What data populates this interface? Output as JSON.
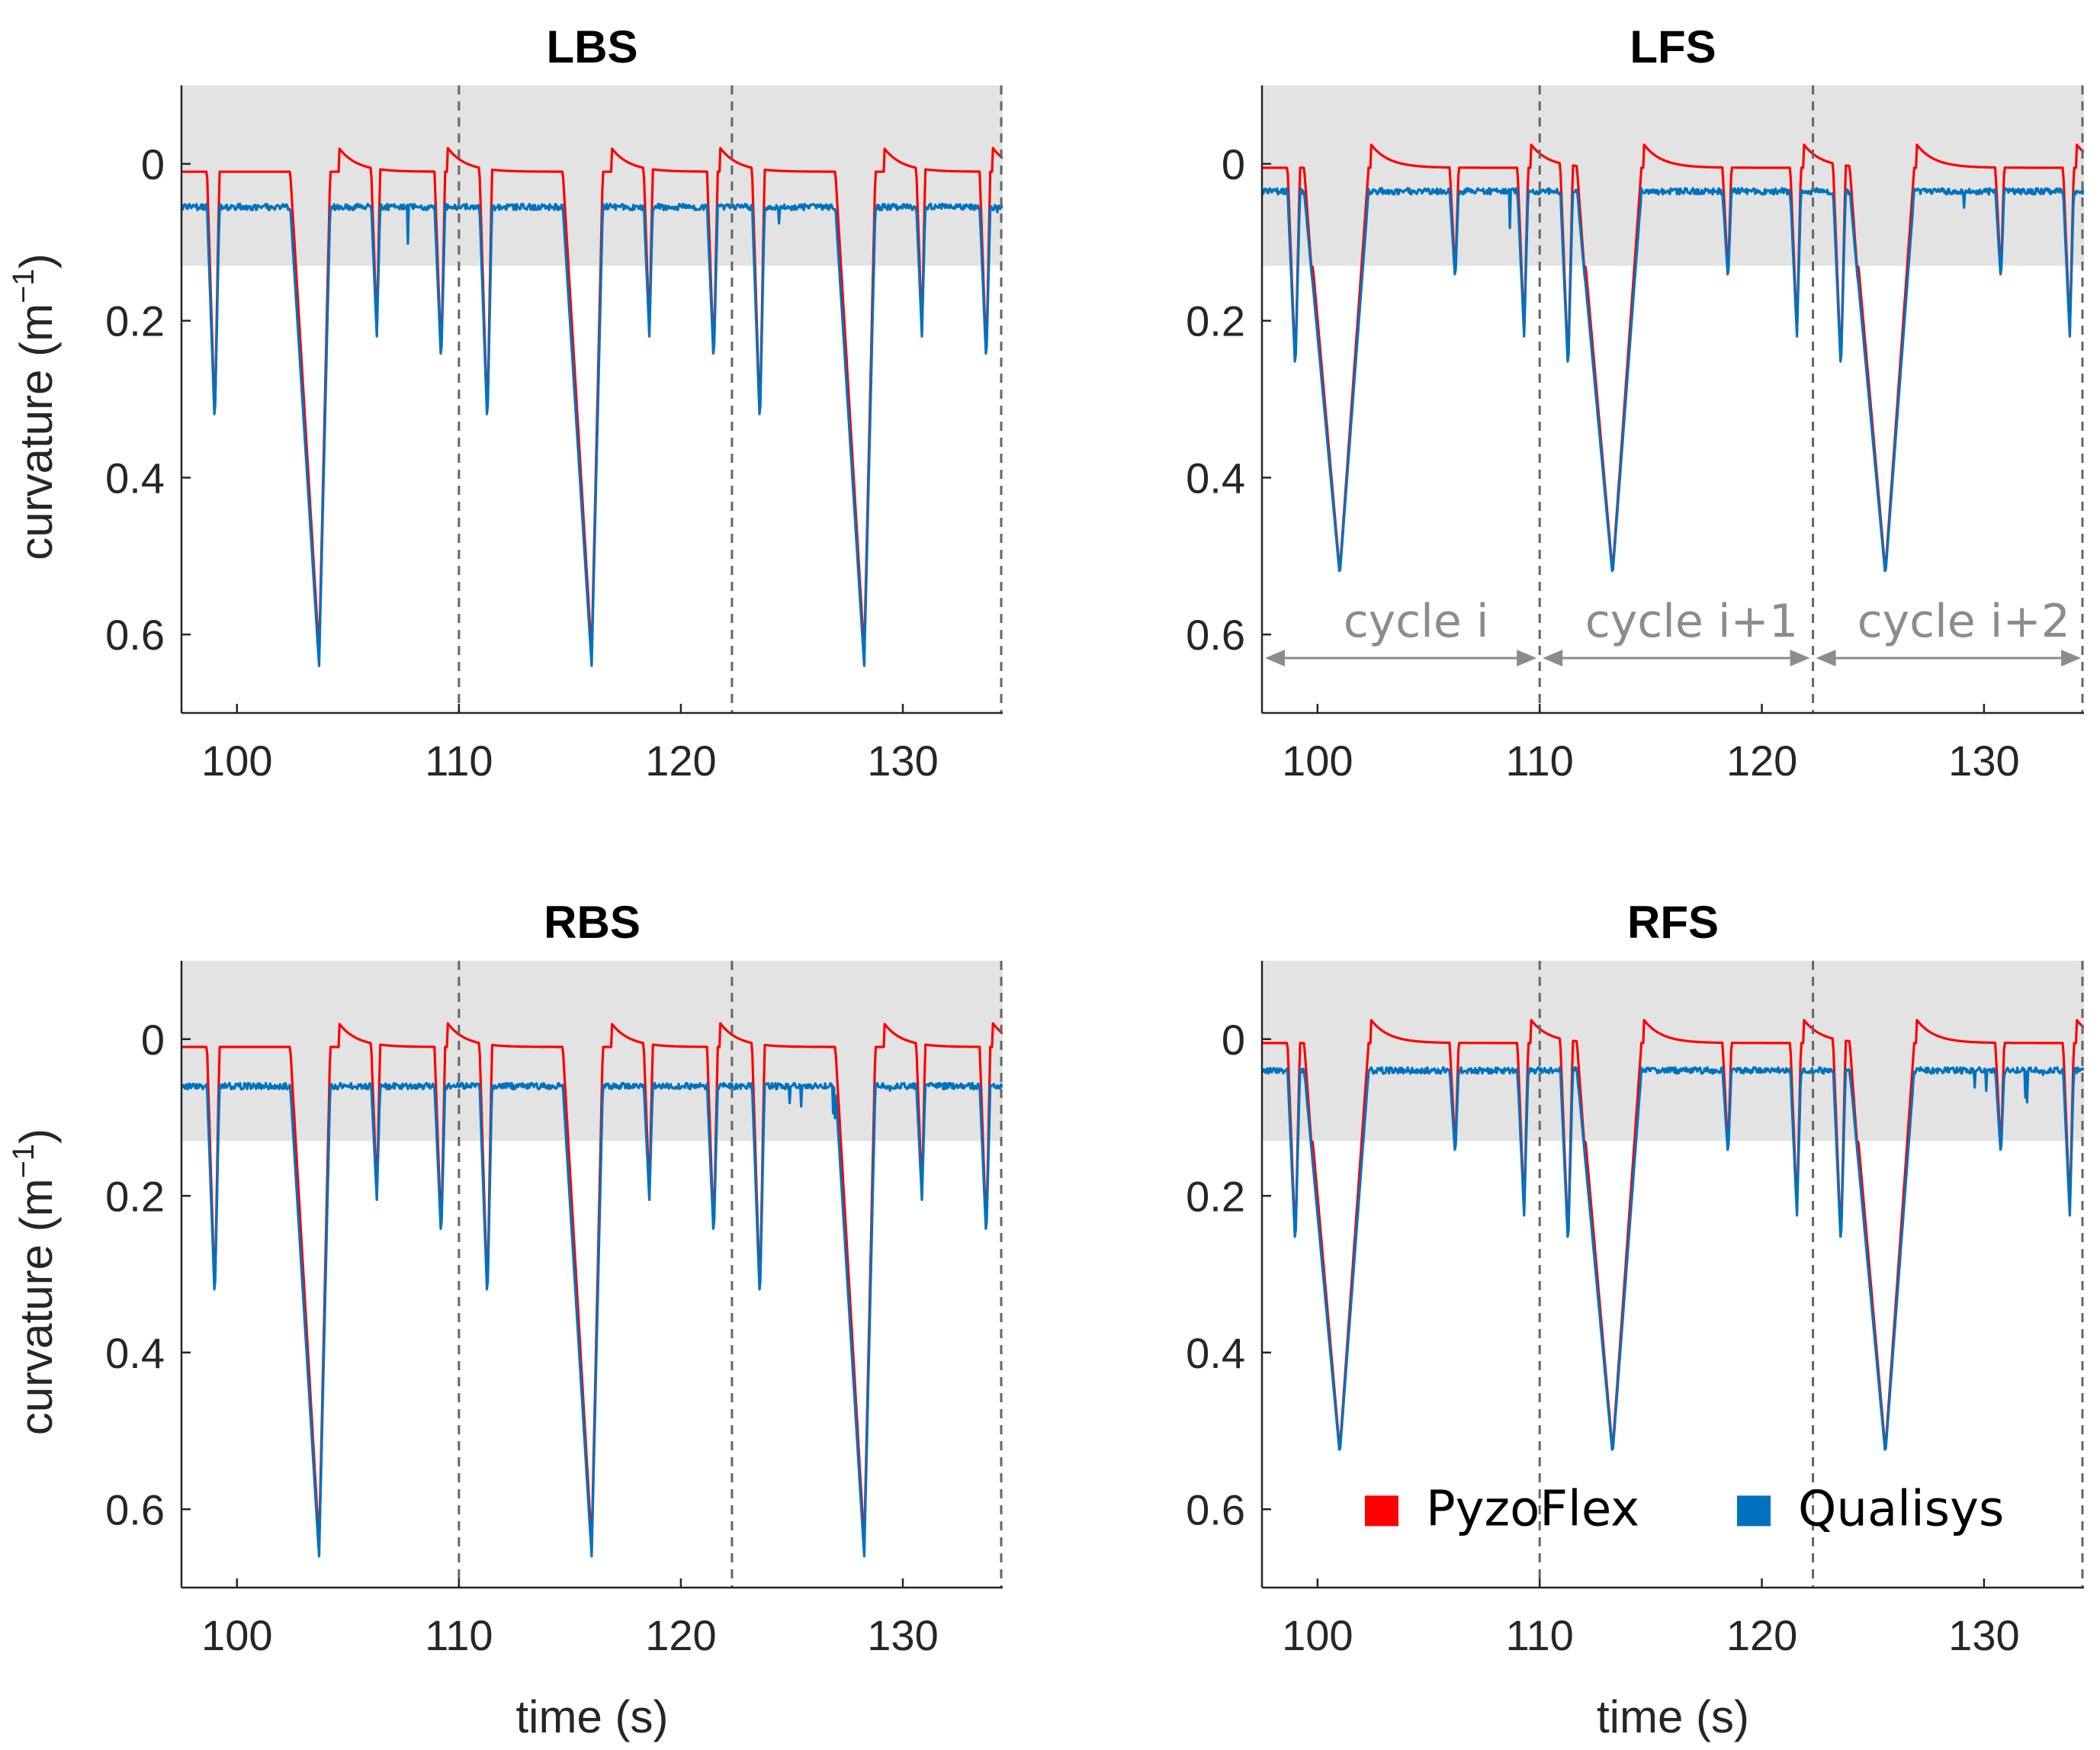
{
  "chart_data": [
    {
      "type": "line",
      "title": "LBS",
      "xlabel": "",
      "ylabel": "curvature (m",
      "ylabel_sup": "−1",
      "ylabel_close": ")",
      "xlim": [
        97.5,
        134.5
      ],
      "ylim": [
        -0.1,
        0.7
      ],
      "y_direction": "reversed",
      "xticks": [
        100,
        110,
        120,
        130
      ],
      "xtick_labels": [
        "100",
        "110",
        "120",
        "130"
      ],
      "yticks": [
        0,
        0.2,
        0.4,
        0.6
      ],
      "ytick_labels": [
        "0",
        "0.2",
        "0.4",
        "0.6"
      ],
      "shaded_band": [
        -0.1,
        0.13
      ],
      "cycle_lines": [
        110,
        122.3,
        134.5
      ],
      "series": [
        {
          "name": "PyzoFlex",
          "color": "#ff0000",
          "baseline": 0.01,
          "peaks_from_baseline": [
            0.33,
            0.63,
            0.22,
            0.25
          ]
        },
        {
          "name": "Qualisys",
          "color": "#0072bd",
          "baseline": 0.055,
          "peaks": [
            0.335,
            0.64,
            0.22,
            0.255
          ]
        }
      ],
      "noise": true
    },
    {
      "type": "line",
      "title": "LFS",
      "xlabel": "",
      "ylabel": "",
      "xlim": [
        97.5,
        134.5
      ],
      "ylim": [
        -0.1,
        0.7
      ],
      "y_direction": "reversed",
      "xticks": [
        100,
        110,
        120,
        130
      ],
      "xtick_labels": [
        "100",
        "110",
        "120",
        "130"
      ],
      "yticks": [
        0,
        0.2,
        0.4,
        0.6
      ],
      "ytick_labels": [
        "0",
        "0.2",
        "0.4",
        "0.6"
      ],
      "shaded_band": [
        -0.1,
        0.13
      ],
      "cycle_lines": [
        110,
        122.3,
        134.5
      ],
      "annotations": [
        "cycle  i",
        "cycle i+1",
        "cycle i+2"
      ],
      "series": [
        {
          "name": "PyzoFlex",
          "color": "#ff0000",
          "baseline": 0.005
        },
        {
          "name": "Qualisys",
          "color": "#0072bd",
          "baseline": 0.035,
          "peaks": [
            0.265,
            0.525,
            0.15,
            0.22
          ]
        }
      ],
      "noise": true
    },
    {
      "type": "line",
      "title": "RBS",
      "xlabel": "time (s)",
      "ylabel": "curvature (m",
      "ylabel_sup": "−1",
      "ylabel_close": ")",
      "xlim": [
        97.5,
        134.5
      ],
      "ylim": [
        -0.1,
        0.7
      ],
      "y_direction": "reversed",
      "xticks": [
        100,
        110,
        120,
        130
      ],
      "xtick_labels": [
        "100",
        "110",
        "120",
        "130"
      ],
      "yticks": [
        0,
        0.2,
        0.4,
        0.6
      ],
      "ytick_labels": [
        "0",
        "0.2",
        "0.4",
        "0.6"
      ],
      "shaded_band": [
        -0.1,
        0.13
      ],
      "cycle_lines": [
        110,
        122.3,
        134.5
      ],
      "series": [
        {
          "name": "PyzoFlex",
          "color": "#ff0000",
          "baseline": 0.01
        },
        {
          "name": "Qualisys",
          "color": "#0072bd",
          "baseline": 0.06,
          "peaks": [
            0.335,
            0.66,
            0.205,
            0.255
          ]
        }
      ],
      "noise": true
    },
    {
      "type": "line",
      "title": "RFS",
      "xlabel": "time (s)",
      "ylabel": "",
      "xlim": [
        97.5,
        134.5
      ],
      "ylim": [
        -0.1,
        0.7
      ],
      "y_direction": "reversed",
      "xticks": [
        100,
        110,
        120,
        130
      ],
      "xtick_labels": [
        "100",
        "110",
        "120",
        "130"
      ],
      "yticks": [
        0,
        0.2,
        0.4,
        0.6
      ],
      "ytick_labels": [
        "0",
        "0.2",
        "0.4",
        "0.6"
      ],
      "shaded_band": [
        -0.1,
        0.13
      ],
      "cycle_lines": [
        110,
        122.3,
        134.5
      ],
      "legend": {
        "placement": "bottom",
        "entries": [
          {
            "label": "PyzoFlex",
            "color": "#ff0000"
          },
          {
            "label": "Qualisys",
            "color": "#0072bd"
          }
        ]
      },
      "series": [
        {
          "name": "PyzoFlex",
          "color": "#ff0000",
          "baseline": 0.005
        },
        {
          "name": "Qualisys",
          "color": "#0072bd",
          "baseline": 0.04,
          "peaks": [
            0.265,
            0.53,
            0.15,
            0.225
          ]
        }
      ],
      "noise": true
    }
  ]
}
